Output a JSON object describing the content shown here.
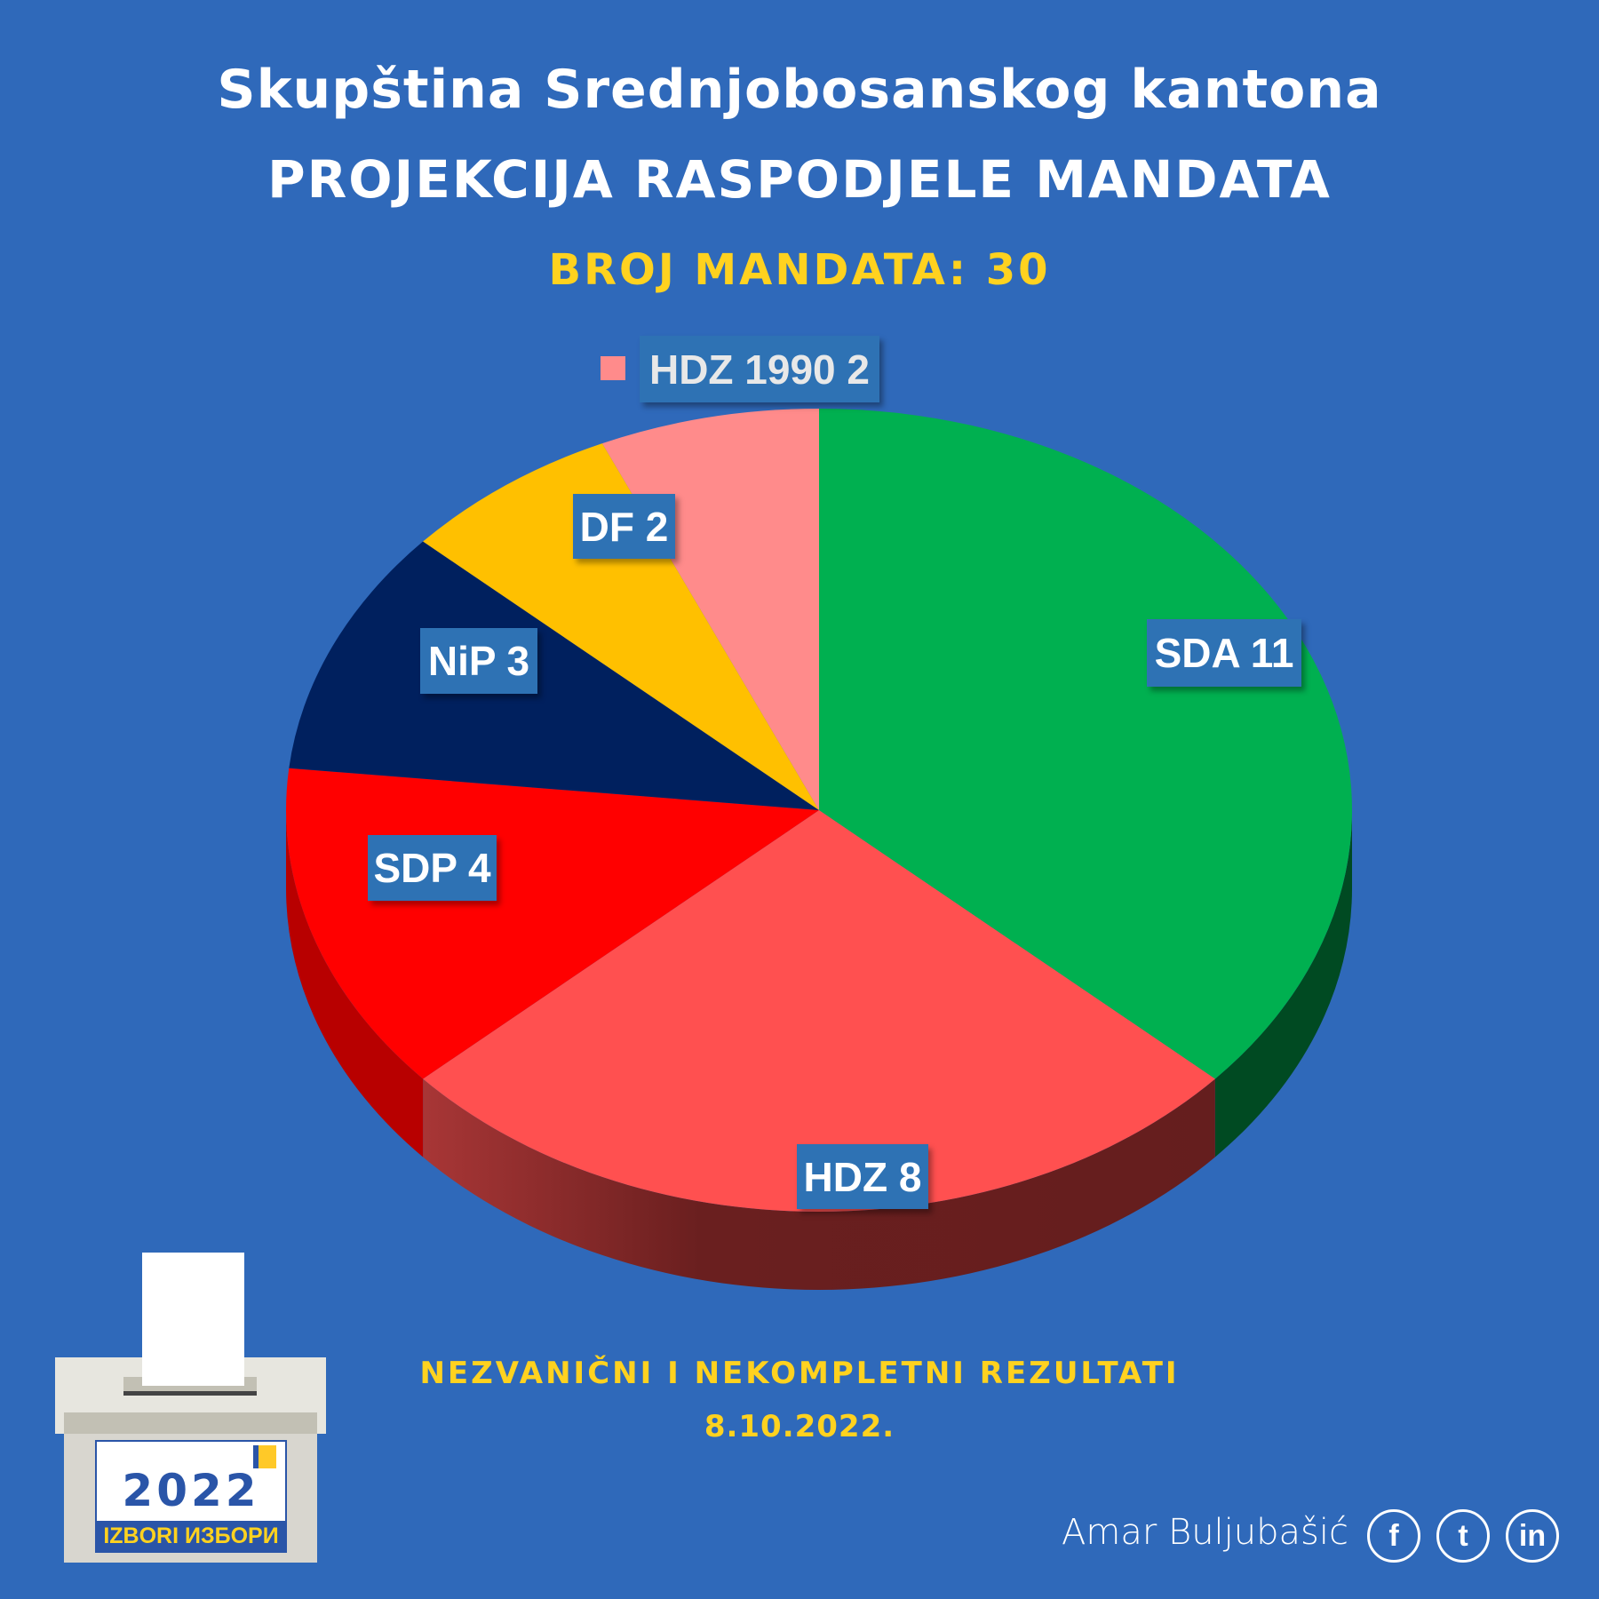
{
  "header": {
    "title": "Skupština Srednjobosanskog kantona",
    "subtitle": "PROJEKCIJA RASPODJELE MANDATA",
    "total_label": "BROJ MANDATA: 30"
  },
  "chart_data": {
    "type": "pie",
    "title": "PROJEKCIJA RASPODJELE MANDATA",
    "total": 30,
    "slices": [
      {
        "name": "SDA",
        "value": 11,
        "label": "SDA 11",
        "color": "#00B050",
        "side": "#004A22"
      },
      {
        "name": "HDZ",
        "value": 8,
        "label": "HDZ 8",
        "color": "#FF5050",
        "side": "#6A1F1F"
      },
      {
        "name": "SDP",
        "value": 4,
        "label": "SDP 4",
        "color": "#FF0000",
        "side": "#B80000"
      },
      {
        "name": "NiP",
        "value": 3,
        "label": "NiP 3",
        "color": "#00205E",
        "side": "#001540"
      },
      {
        "name": "DF",
        "value": 2,
        "label": "DF 2",
        "color": "#FFC000",
        "side": "#A07800"
      },
      {
        "name": "HDZ 1990",
        "value": 2,
        "label": "HDZ 1990 2",
        "color": "#FF8B8B",
        "side": "#A05050"
      }
    ]
  },
  "footer": {
    "note": "NEZVANIČNI I NEKOMPLETNI REZULTATI",
    "date": "8.10.2022.",
    "author": "Amar Buljubašić",
    "social": [
      "f",
      "t",
      "in"
    ],
    "logo_year": "2022",
    "logo_text": "IZBORI ИЗБОРИ"
  },
  "colors": {
    "background": "#2F69BA",
    "accent": "#FFD21F",
    "label_bg": "#2E72B4"
  }
}
